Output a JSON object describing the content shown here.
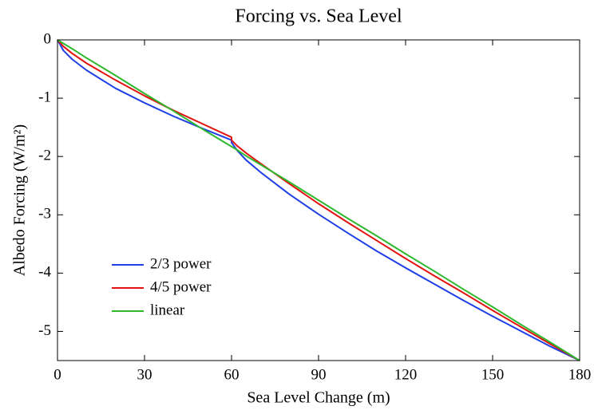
{
  "chart_data": {
    "type": "line",
    "title": "Forcing vs. Sea Level",
    "xlabel": "Sea Level Change (m)",
    "ylabel": "Albedo Forcing (W/m²)",
    "x": [
      0,
      2,
      5,
      10,
      20,
      30,
      40,
      50,
      60,
      60,
      62,
      65,
      70,
      80,
      90,
      100,
      110,
      120,
      130,
      140,
      150,
      160,
      170,
      180
    ],
    "series": [
      {
        "name": "2/3 power",
        "color": "#1f3fe6",
        "values": [
          0,
          -0.18,
          -0.33,
          -0.52,
          -0.83,
          -1.08,
          -1.31,
          -1.52,
          -1.72,
          -1.76,
          -1.9,
          -2.06,
          -2.27,
          -2.65,
          -2.99,
          -3.31,
          -3.62,
          -3.91,
          -4.19,
          -4.47,
          -4.74,
          -5.0,
          -5.26,
          -5.5
        ]
      },
      {
        "name": "4/5 power",
        "color": "#e3120e",
        "values": [
          0,
          -0.11,
          -0.23,
          -0.4,
          -0.69,
          -0.96,
          -1.21,
          -1.44,
          -1.67,
          -1.72,
          -1.82,
          -1.94,
          -2.12,
          -2.47,
          -2.81,
          -3.13,
          -3.44,
          -3.75,
          -4.05,
          -4.34,
          -4.64,
          -4.93,
          -5.22,
          -5.5
        ]
      },
      {
        "name": "linear",
        "color": "#2eb82e",
        "values": [
          0,
          -0.06,
          -0.15,
          -0.31,
          -0.61,
          -0.92,
          -1.22,
          -1.53,
          -1.83,
          -1.83,
          -1.89,
          -1.99,
          -2.14,
          -2.44,
          -2.75,
          -3.06,
          -3.36,
          -3.67,
          -3.97,
          -4.28,
          -4.58,
          -4.89,
          -5.19,
          -5.5
        ]
      }
    ],
    "xlim": [
      0,
      180
    ],
    "xticks": [
      0,
      30,
      60,
      90,
      120,
      150,
      180
    ],
    "ylim": [
      -5.5,
      0
    ],
    "yticks": [
      0,
      -1,
      -2,
      -3,
      -4,
      -5
    ],
    "grid": false,
    "legend": "lower-left"
  }
}
